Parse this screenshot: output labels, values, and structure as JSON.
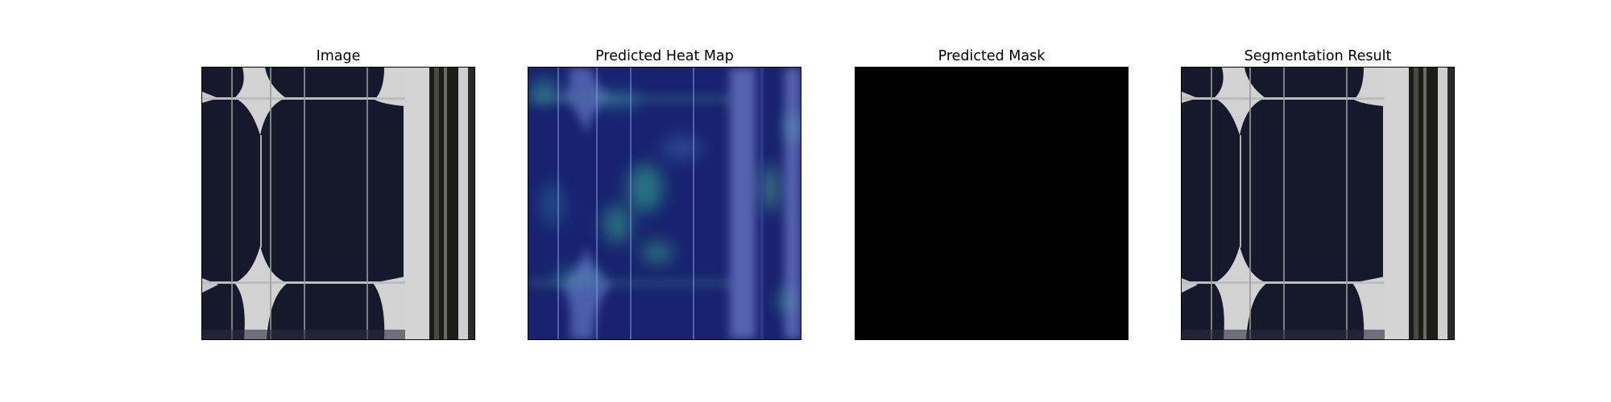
{
  "panels": [
    {
      "id": "image",
      "title": "Image",
      "content": "solar-cell-photo"
    },
    {
      "id": "heatmap",
      "title": "Predicted Heat Map",
      "content": "heat-map-overlay"
    },
    {
      "id": "mask",
      "title": "Predicted Mask",
      "content": "empty-mask"
    },
    {
      "id": "segmentation",
      "title": "Segmentation Result",
      "content": "solar-cell-photo"
    }
  ],
  "colors": {
    "cell": "#15172a",
    "busbar": "#c8c8c8",
    "corner_gap": "#d2d2d2",
    "frame_dark": "#1c1c18",
    "heat_base": "#18226e",
    "heat_hot": "#2fa88e",
    "mask": "#000000"
  }
}
